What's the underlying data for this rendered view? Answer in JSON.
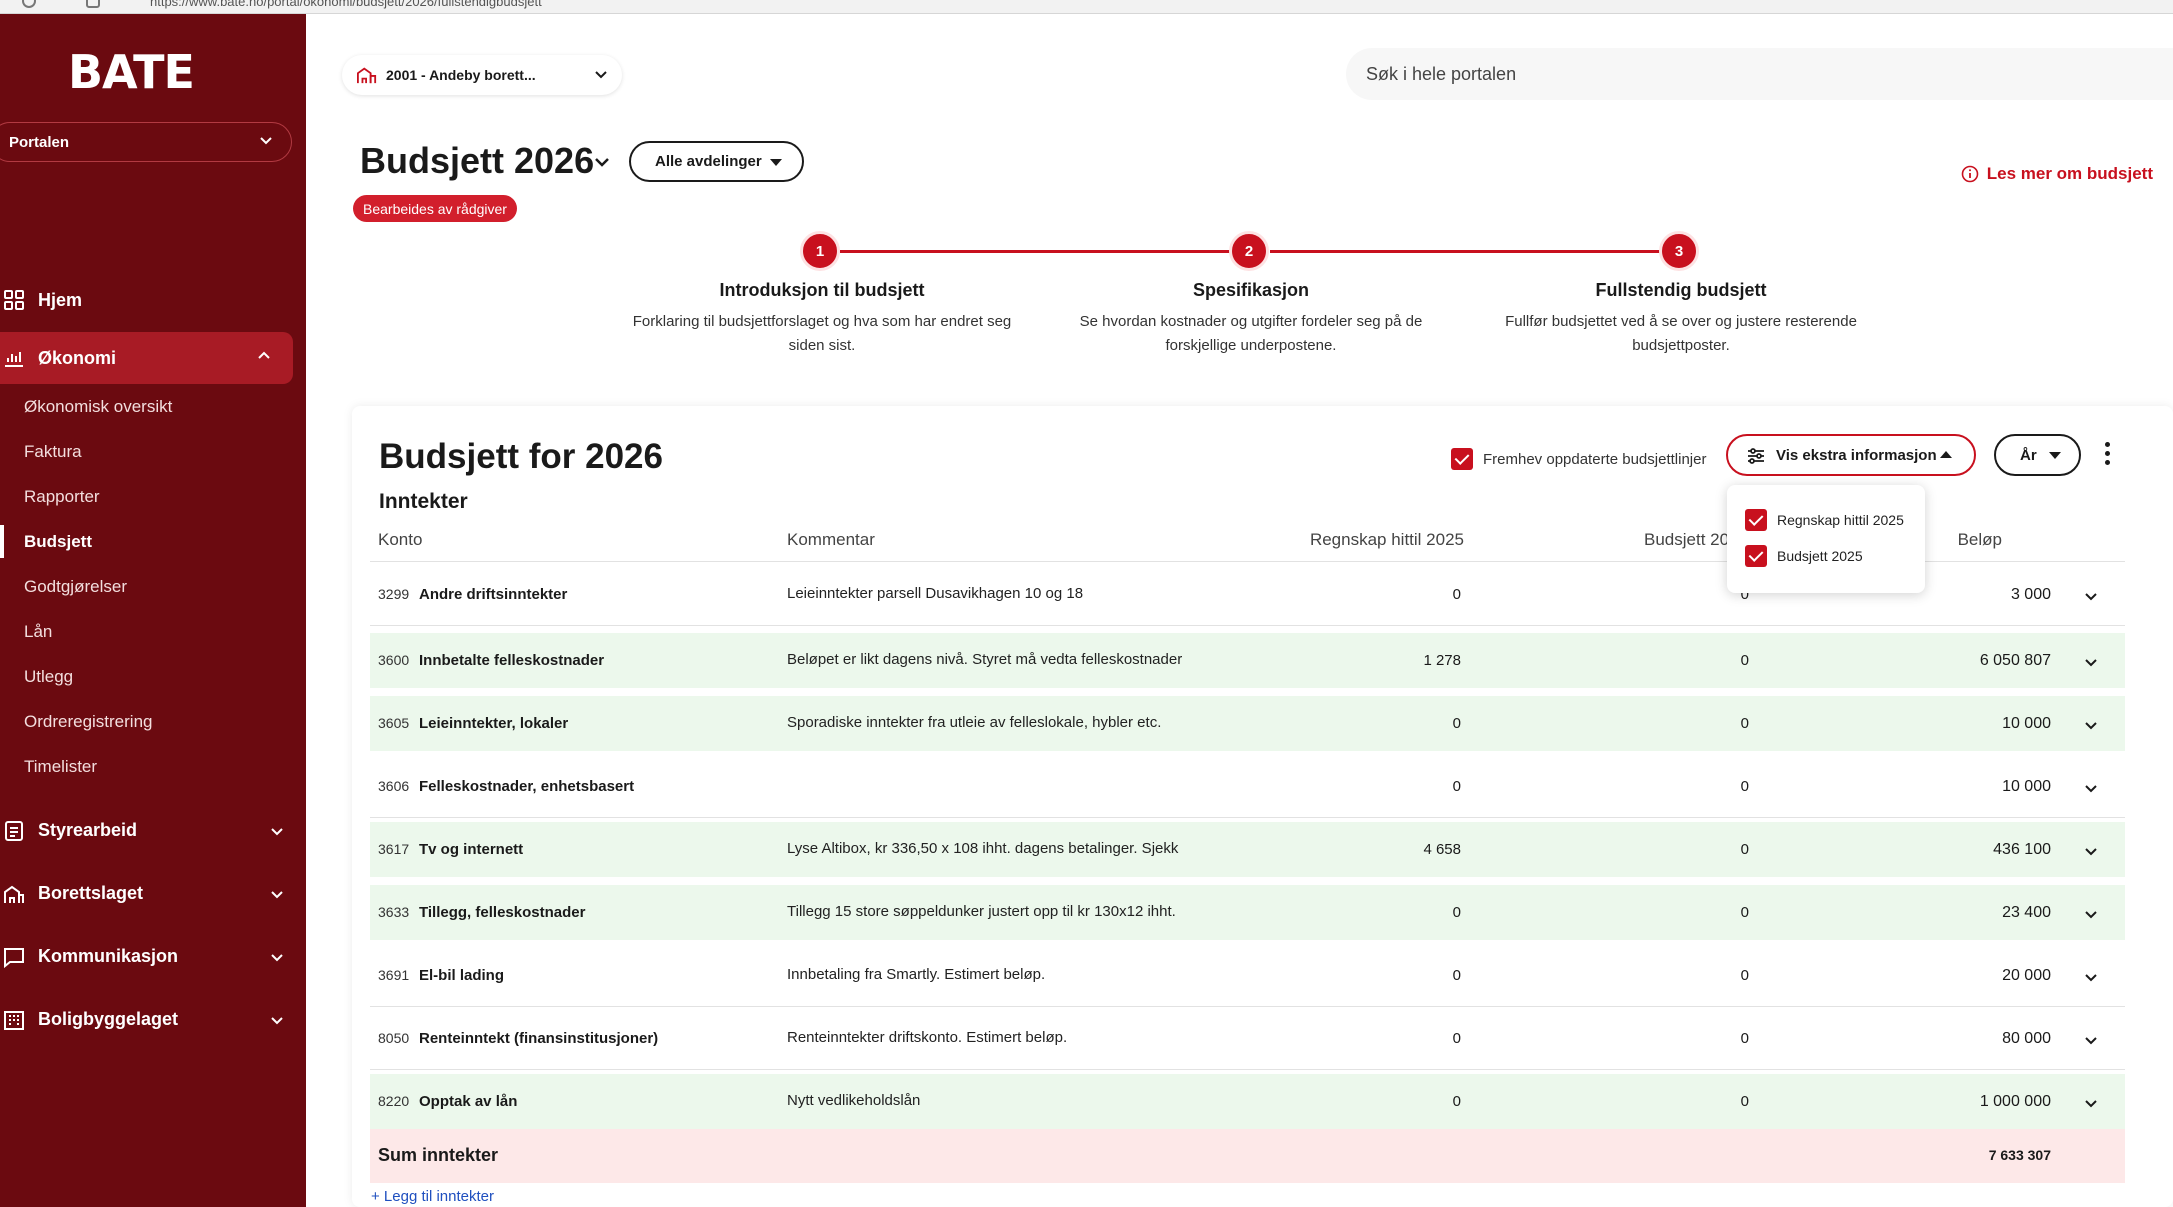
{
  "browser": {
    "url": "https://www.bate.no/portal/okonomi/budsjett/2026/fullstendigbudsjett"
  },
  "sidebar": {
    "logo_text": "BATE",
    "portal_select": "Portalen",
    "nav": {
      "home": "Hjem",
      "economy": "Økonomi",
      "economy_sub": [
        "Økonomisk oversikt",
        "Faktura",
        "Rapporter",
        "Budsjett",
        "Godtgjørelser",
        "Lån",
        "Utlegg",
        "Ordreregistrering",
        "Timelister"
      ],
      "board": "Styrearbeid",
      "housing": "Borettslaget",
      "communication": "Kommunikasjon",
      "builder": "Boligbyggelaget"
    }
  },
  "header": {
    "estate": "2001 - Andeby borett...",
    "search_placeholder": "Søk i hele portalen"
  },
  "page": {
    "title": "Budsjett 2026",
    "department_button": "Alle avdelinger",
    "status_badge": "Bearbeides av rådgiver",
    "info_link": "Les mer om budsjett"
  },
  "steps": [
    {
      "num": "1",
      "title": "Introduksjon til budsjett",
      "desc": "Forklaring til budsjettforslaget og hva som har endret seg siden sist."
    },
    {
      "num": "2",
      "title": "Spesifikasjon",
      "desc": "Se hvordan kostnader og utgifter fordeler seg på de forskjellige underpostene."
    },
    {
      "num": "3",
      "title": "Fullstendig budsjett",
      "desc": "Fullfør budsjettet ved å se over og justere resterende budsjettposter."
    }
  ],
  "card": {
    "title": "Budsjett for 2026",
    "section": "Inntekter",
    "highlight_label": "Fremhev oppdaterte budsjettlinjer",
    "extra_button": "Vis ekstra informasjon",
    "year_button": "År",
    "dropdown": [
      "Regnskap hittil 2025",
      "Budsjett 2025"
    ],
    "columns": {
      "account": "Konto",
      "comment": "Kommentar",
      "accounting": "Regnskap hittil 2025",
      "budget": "Budsjett 2025",
      "amount": "Beløp"
    },
    "rows": [
      {
        "code": "3299",
        "name": "Andre driftsinntekter",
        "comment": "Leieinntekter parsell Dusavikhagen 10 og 18",
        "accounting": "0",
        "budget": "0",
        "amount": "3 000",
        "highlighted": false
      },
      {
        "code": "3600",
        "name": "Innbetalte felleskostnader",
        "comment": "Beløpet er likt dagens nivå. Styret må vedta felleskostnader",
        "accounting": "1 278",
        "budget": "0",
        "amount": "6 050 807",
        "highlighted": true
      },
      {
        "code": "3605",
        "name": "Leieinntekter, lokaler",
        "comment": "Sporadiske inntekter fra utleie av felleslokale, hybler etc.",
        "accounting": "0",
        "budget": "0",
        "amount": "10 000",
        "highlighted": true
      },
      {
        "code": "3606",
        "name": "Felleskostnader, enhetsbasert",
        "comment": "",
        "accounting": "0",
        "budget": "0",
        "amount": "10 000",
        "highlighted": false
      },
      {
        "code": "3617",
        "name": "Tv og internett",
        "comment": "Lyse Altibox, kr 336,50 x 108 ihht. dagens betalinger. Sjekk",
        "accounting": "4 658",
        "budget": "0",
        "amount": "436 100",
        "highlighted": true
      },
      {
        "code": "3633",
        "name": "Tillegg, felleskostnader",
        "comment": "Tillegg 15 store søppeldunker justert opp til kr 130x12 ihht.",
        "accounting": "0",
        "budget": "0",
        "amount": "23 400",
        "highlighted": true
      },
      {
        "code": "3691",
        "name": "El-bil lading",
        "comment": "Innbetaling fra Smartly. Estimert beløp.",
        "accounting": "0",
        "budget": "0",
        "amount": "20 000",
        "highlighted": false
      },
      {
        "code": "8050",
        "name": "Renteinntekt (finansinstitusjoner)",
        "comment": "Renteinntekter driftskonto. Estimert beløp.",
        "accounting": "0",
        "budget": "0",
        "amount": "80 000",
        "highlighted": false
      },
      {
        "code": "8220",
        "name": "Opptak av lån",
        "comment": "Nytt vedlikeholdslån",
        "accounting": "0",
        "budget": "0",
        "amount": "1 000 000",
        "highlighted": true
      }
    ],
    "sum_label": "Sum inntekter",
    "sum_value": "7 633 307",
    "add_link": "+ Legg til inntekter"
  },
  "colors": {
    "brand_dark": "#6b0a10",
    "accent": "#c8101e",
    "row_highlight": "#ecf8ec",
    "sum_bg": "#fde8e8"
  }
}
